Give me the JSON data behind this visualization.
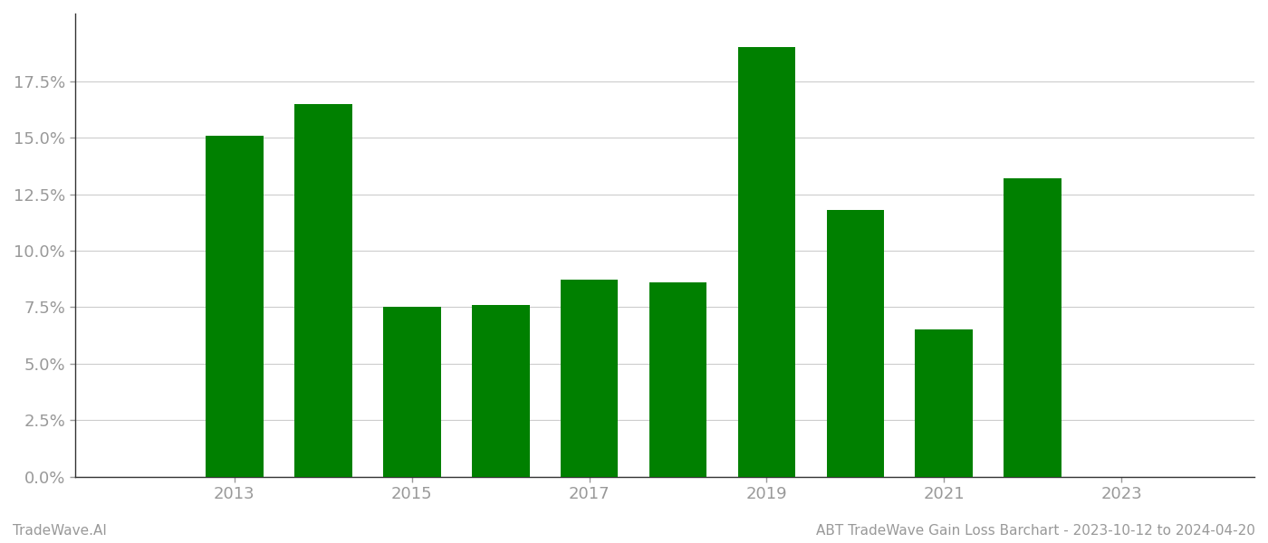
{
  "years": [
    2013,
    2014,
    2015,
    2016,
    2017,
    2018,
    2019,
    2020,
    2021,
    2022
  ],
  "values": [
    0.151,
    0.165,
    0.075,
    0.076,
    0.087,
    0.086,
    0.19,
    0.118,
    0.065,
    0.132
  ],
  "bar_color": "#008000",
  "background_color": "#ffffff",
  "grid_color": "#cccccc",
  "ylabel_ticks": [
    0.0,
    0.025,
    0.05,
    0.075,
    0.1,
    0.125,
    0.15,
    0.175
  ],
  "ylim": [
    0.0,
    0.205
  ],
  "xtick_labels": [
    "2013",
    "2015",
    "2017",
    "2019",
    "2021",
    "2023"
  ],
  "xtick_positions": [
    2013,
    2015,
    2017,
    2019,
    2021,
    2023
  ],
  "footer_left": "TradeWave.AI",
  "footer_right": "ABT TradeWave Gain Loss Barchart - 2023-10-12 to 2024-04-20",
  "tick_label_color": "#999999",
  "spine_color": "#333333",
  "footer_color": "#999999",
  "bar_width": 0.65
}
